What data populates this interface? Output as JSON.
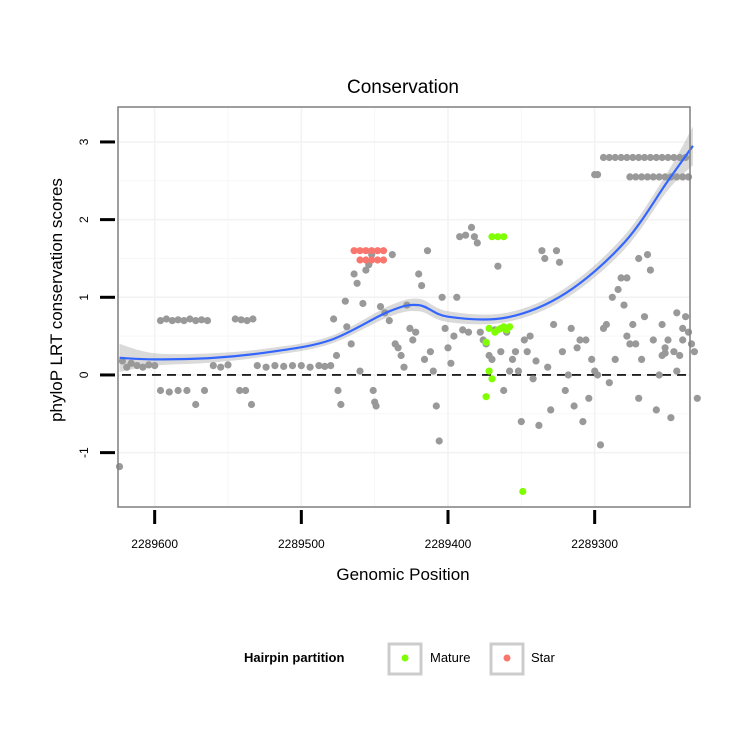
{
  "chart_data": {
    "type": "scatter",
    "title": "Conservation",
    "xlabel": "Genomic Position",
    "ylabel": "phyloP LRT conservation scores",
    "x_reversed": true,
    "xlim": [
      2289625,
      2289235
    ],
    "ylim": [
      -1.7,
      3.45
    ],
    "x_ticks": [
      2289600,
      2289500,
      2289400,
      2289300
    ],
    "x_tick_labels": [
      "2289600",
      "2289500",
      "2289400",
      "2289300"
    ],
    "y_ticks": [
      -1,
      0,
      1,
      2,
      3
    ],
    "y_tick_labels": [
      "-1",
      "0",
      "1",
      "2",
      "3"
    ],
    "reference_line": {
      "y": 0,
      "style": "dashed"
    },
    "grid": true,
    "legend": {
      "title": "Hairpin partition",
      "position": "bottom",
      "entries": [
        {
          "label": "Mature",
          "color": "#7fff00"
        },
        {
          "label": "Star",
          "color": "#f8766d"
        }
      ]
    },
    "colors": {
      "other": "#999999",
      "mature": "#7fff00",
      "star": "#f8766d",
      "smooth": "#3366ff",
      "ribbon": "#bbbbbb"
    },
    "series": [
      {
        "name": "Other",
        "points": [
          [
            2289624,
            -1.18
          ],
          [
            2289622,
            0.18
          ],
          [
            2289619,
            0.1
          ],
          [
            2289616,
            0.15
          ],
          [
            2289612,
            0.12
          ],
          [
            2289608,
            0.1
          ],
          [
            2289604,
            0.13
          ],
          [
            2289600,
            0.12
          ],
          [
            2289596,
            0.7
          ],
          [
            2289592,
            0.72
          ],
          [
            2289588,
            0.7
          ],
          [
            2289584,
            0.71
          ],
          [
            2289580,
            0.7
          ],
          [
            2289576,
            0.72
          ],
          [
            2289572,
            0.7
          ],
          [
            2289568,
            0.71
          ],
          [
            2289564,
            0.7
          ],
          [
            2289596,
            -0.2
          ],
          [
            2289590,
            -0.22
          ],
          [
            2289584,
            -0.2
          ],
          [
            2289578,
            -0.2
          ],
          [
            2289572,
            -0.38
          ],
          [
            2289566,
            -0.2
          ],
          [
            2289560,
            0.12
          ],
          [
            2289555,
            0.1
          ],
          [
            2289550,
            0.13
          ],
          [
            2289545,
            0.72
          ],
          [
            2289541,
            0.71
          ],
          [
            2289537,
            0.7
          ],
          [
            2289533,
            0.72
          ],
          [
            2289542,
            -0.2
          ],
          [
            2289538,
            -0.2
          ],
          [
            2289534,
            -0.38
          ],
          [
            2289530,
            0.12
          ],
          [
            2289524,
            0.1
          ],
          [
            2289518,
            0.12
          ],
          [
            2289512,
            0.11
          ],
          [
            2289506,
            0.12
          ],
          [
            2289500,
            0.12
          ],
          [
            2289494,
            0.1
          ],
          [
            2289488,
            0.12
          ],
          [
            2289484,
            0.11
          ],
          [
            2289480,
            0.12
          ],
          [
            2289478,
            0.72
          ],
          [
            2289476,
            0.25
          ],
          [
            2289475,
            -0.2
          ],
          [
            2289473,
            -0.38
          ],
          [
            2289470,
            0.95
          ],
          [
            2289469,
            0.62
          ],
          [
            2289466,
            0.4
          ],
          [
            2289464,
            1.3
          ],
          [
            2289462,
            1.18
          ],
          [
            2289460,
            0.05
          ],
          [
            2289458,
            0.92
          ],
          [
            2289456,
            1.35
          ],
          [
            2289454,
            1.42
          ],
          [
            2289452,
            1.55
          ],
          [
            2289451,
            -0.2
          ],
          [
            2289450,
            -0.35
          ],
          [
            2289449,
            -0.4
          ],
          [
            2289446,
            0.88
          ],
          [
            2289443,
            0.8
          ],
          [
            2289440,
            0.7
          ],
          [
            2289438,
            1.55
          ],
          [
            2289436,
            0.4
          ],
          [
            2289434,
            0.35
          ],
          [
            2289432,
            0.25
          ],
          [
            2289430,
            0.1
          ],
          [
            2289428,
            0.9
          ],
          [
            2289426,
            0.6
          ],
          [
            2289424,
            0.45
          ],
          [
            2289422,
            0.55
          ],
          [
            2289420,
            1.3
          ],
          [
            2289418,
            1.15
          ],
          [
            2289416,
            0.2
          ],
          [
            2289414,
            1.6
          ],
          [
            2289412,
            0.3
          ],
          [
            2289410,
            0.05
          ],
          [
            2289408,
            -0.4
          ],
          [
            2289406,
            -0.85
          ],
          [
            2289404,
            1.0
          ],
          [
            2289402,
            0.6
          ],
          [
            2289400,
            0.35
          ],
          [
            2289398,
            0.15
          ],
          [
            2289396,
            0.5
          ],
          [
            2289394,
            1.0
          ],
          [
            2289392,
            1.78
          ],
          [
            2289390,
            0.58
          ],
          [
            2289388,
            1.8
          ],
          [
            2289386,
            0.55
          ],
          [
            2289384,
            1.9
          ],
          [
            2289382,
            1.78
          ],
          [
            2289380,
            1.7
          ],
          [
            2289378,
            0.55
          ],
          [
            2289376,
            0.45
          ],
          [
            2289374,
            0.4
          ],
          [
            2289372,
            0.25
          ],
          [
            2289370,
            0.2
          ],
          [
            2289368,
            0.58
          ],
          [
            2289366,
            1.4
          ],
          [
            2289364,
            0.3
          ],
          [
            2289362,
            -0.2
          ],
          [
            2289360,
            0.55
          ],
          [
            2289358,
            0.05
          ],
          [
            2289356,
            0.2
          ],
          [
            2289354,
            0.3
          ],
          [
            2289352,
            0.05
          ],
          [
            2289350,
            -0.6
          ],
          [
            2289348,
            0.45
          ],
          [
            2289346,
            0.3
          ],
          [
            2289344,
            0.5
          ],
          [
            2289342,
            -0.05
          ],
          [
            2289340,
            0.18
          ],
          [
            2289338,
            -0.65
          ],
          [
            2289336,
            1.6
          ],
          [
            2289334,
            1.5
          ],
          [
            2289332,
            0.1
          ],
          [
            2289330,
            -0.45
          ],
          [
            2289328,
            0.65
          ],
          [
            2289326,
            1.6
          ],
          [
            2289324,
            1.45
          ],
          [
            2289322,
            0.3
          ],
          [
            2289320,
            -0.2
          ],
          [
            2289318,
            0.0
          ],
          [
            2289316,
            0.6
          ],
          [
            2289314,
            -0.4
          ],
          [
            2289312,
            0.35
          ],
          [
            2289310,
            0.45
          ],
          [
            2289308,
            -0.6
          ],
          [
            2289306,
            0.45
          ],
          [
            2289304,
            -0.3
          ],
          [
            2289302,
            0.2
          ],
          [
            2289300,
            0.05
          ],
          [
            2289298,
            0.0
          ],
          [
            2289296,
            -0.9
          ],
          [
            2289294,
            0.6
          ],
          [
            2289292,
            0.65
          ],
          [
            2289290,
            -0.1
          ],
          [
            2289288,
            1.0
          ],
          [
            2289286,
            0.2
          ],
          [
            2289284,
            1.1
          ],
          [
            2289282,
            1.25
          ],
          [
            2289280,
            0.9
          ],
          [
            2289278,
            0.5
          ],
          [
            2289276,
            0.4
          ],
          [
            2289274,
            0.65
          ],
          [
            2289272,
            0.4
          ],
          [
            2289270,
            -0.3
          ],
          [
            2289268,
            0.2
          ],
          [
            2289266,
            0.75
          ],
          [
            2289264,
            1.55
          ],
          [
            2289262,
            1.35
          ],
          [
            2289260,
            0.45
          ],
          [
            2289258,
            -0.45
          ],
          [
            2289256,
            0.0
          ],
          [
            2289254,
            0.25
          ],
          [
            2289252,
            0.35
          ],
          [
            2289250,
            0.45
          ],
          [
            2289248,
            -0.55
          ],
          [
            2289246,
            0.3
          ],
          [
            2289244,
            0.05
          ],
          [
            2289242,
            0.25
          ],
          [
            2289240,
            0.6
          ],
          [
            2289238,
            0.75
          ],
          [
            2289236,
            0.55
          ],
          [
            2289234,
            0.4
          ],
          [
            2289232,
            0.3
          ],
          [
            2289230,
            -0.3
          ],
          [
            2289300,
            2.58
          ],
          [
            2289298,
            2.58
          ],
          [
            2289294,
            2.8
          ],
          [
            2289290,
            2.8
          ],
          [
            2289286,
            2.8
          ],
          [
            2289282,
            2.8
          ],
          [
            2289278,
            2.8
          ],
          [
            2289274,
            2.8
          ],
          [
            2289270,
            2.8
          ],
          [
            2289266,
            2.8
          ],
          [
            2289262,
            2.8
          ],
          [
            2289258,
            2.8
          ],
          [
            2289254,
            2.8
          ],
          [
            2289250,
            2.8
          ],
          [
            2289246,
            2.8
          ],
          [
            2289242,
            2.8
          ],
          [
            2289238,
            2.8
          ],
          [
            2289276,
            2.55
          ],
          [
            2289272,
            2.55
          ],
          [
            2289268,
            2.55
          ],
          [
            2289264,
            2.55
          ],
          [
            2289260,
            2.55
          ],
          [
            2289256,
            2.55
          ],
          [
            2289252,
            2.55
          ],
          [
            2289248,
            2.55
          ],
          [
            2289244,
            2.55
          ],
          [
            2289240,
            2.55
          ],
          [
            2289236,
            2.55
          ],
          [
            2289278,
            1.25
          ],
          [
            2289254,
            0.65
          ],
          [
            2289252,
            0.28
          ],
          [
            2289270,
            1.5
          ],
          [
            2289244,
            0.8
          ],
          [
            2289240,
            0.45
          ]
        ]
      },
      {
        "name": "Mature",
        "points": [
          [
            2289370,
            1.78
          ],
          [
            2289366,
            1.78
          ],
          [
            2289362,
            1.78
          ],
          [
            2289372,
            0.6
          ],
          [
            2289368,
            0.55
          ],
          [
            2289366,
            0.58
          ],
          [
            2289364,
            0.6
          ],
          [
            2289362,
            0.62
          ],
          [
            2289374,
            0.42
          ],
          [
            2289372,
            0.05
          ],
          [
            2289370,
            -0.05
          ],
          [
            2289374,
            -0.28
          ],
          [
            2289360,
            0.58
          ],
          [
            2289358,
            0.62
          ],
          [
            2289349,
            -1.5
          ]
        ]
      },
      {
        "name": "Star",
        "points": [
          [
            2289464,
            1.6
          ],
          [
            2289460,
            1.6
          ],
          [
            2289456,
            1.6
          ],
          [
            2289452,
            1.6
          ],
          [
            2289448,
            1.6
          ],
          [
            2289444,
            1.6
          ],
          [
            2289460,
            1.48
          ],
          [
            2289456,
            1.48
          ],
          [
            2289452,
            1.48
          ],
          [
            2289448,
            1.48
          ],
          [
            2289444,
            1.48
          ]
        ]
      }
    ],
    "smooth_fit": {
      "method": "loess",
      "points": [
        [
          2289624,
          0.22
        ],
        [
          2289600,
          0.2
        ],
        [
          2289560,
          0.22
        ],
        [
          2289520,
          0.3
        ],
        [
          2289480,
          0.45
        ],
        [
          2289440,
          0.82
        ],
        [
          2289420,
          0.9
        ],
        [
          2289400,
          0.75
        ],
        [
          2289360,
          0.74
        ],
        [
          2289320,
          1.05
        ],
        [
          2289280,
          1.7
        ],
        [
          2289250,
          2.5
        ],
        [
          2289233,
          2.95
        ]
      ],
      "band_halfwidth": [
        0.18,
        0.08,
        0.06,
        0.05,
        0.05,
        0.07,
        0.08,
        0.07,
        0.06,
        0.07,
        0.09,
        0.12,
        0.25
      ]
    }
  }
}
